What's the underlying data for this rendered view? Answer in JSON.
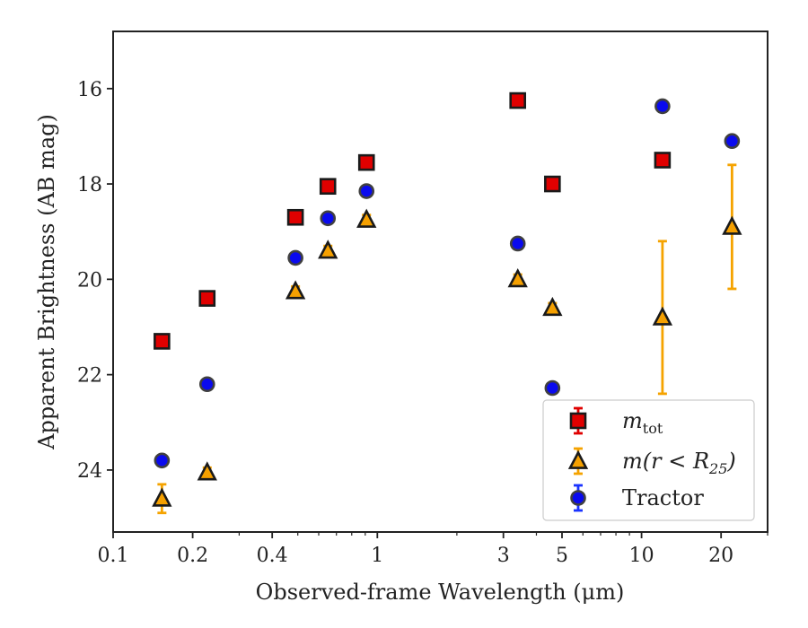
{
  "chart_data": {
    "type": "scatter",
    "xlabel": "Observed-frame Wavelength (μm)",
    "ylabel": "Apparent Brightness (AB mag)",
    "xscale": "log",
    "xlim": [
      0.1,
      30
    ],
    "ylim": [
      25.3,
      14.8
    ],
    "y_inverted": true,
    "grid": false,
    "legend_position": "lower-right",
    "x_ticks": [
      {
        "value": 0.1,
        "label": "0.1"
      },
      {
        "value": 0.2,
        "label": "0.2"
      },
      {
        "value": 0.4,
        "label": "0.4"
      },
      {
        "value": 1,
        "label": "1"
      },
      {
        "value": 3,
        "label": "3"
      },
      {
        "value": 5,
        "label": "5"
      },
      {
        "value": 10,
        "label": "10"
      },
      {
        "value": 20,
        "label": "20"
      }
    ],
    "y_ticks": [
      {
        "value": 16,
        "label": "16"
      },
      {
        "value": 18,
        "label": "18"
      },
      {
        "value": 20,
        "label": "20"
      },
      {
        "value": 22,
        "label": "22"
      },
      {
        "value": 24,
        "label": "24"
      }
    ],
    "series": [
      {
        "name": "m_tot",
        "legend_main": "m",
        "legend_sub": "tot",
        "marker": "square",
        "fill": "#e00000",
        "edge": "#1a1a1a",
        "errcolor": "#e00000",
        "points": [
          {
            "x": 0.153,
            "y": 21.3,
            "err": 0.1
          },
          {
            "x": 0.227,
            "y": 20.4,
            "err": 0.1
          },
          {
            "x": 0.49,
            "y": 18.7,
            "err": 0.1
          },
          {
            "x": 0.65,
            "y": 18.05,
            "err": 0.1
          },
          {
            "x": 0.91,
            "y": 17.55,
            "err": 0.1
          },
          {
            "x": 3.4,
            "y": 16.25,
            "err": 0.1
          },
          {
            "x": 4.6,
            "y": 18.0,
            "err": 0.1
          },
          {
            "x": 12.0,
            "y": 17.5,
            "err": 0.1
          }
        ]
      },
      {
        "name": "m(r < R_25)",
        "legend_main": "m(r < R",
        "legend_sub": "25",
        "legend_close": ")",
        "marker": "triangle",
        "fill": "#f5a000",
        "edge": "#1a1a1a",
        "errcolor": "#f5a300",
        "points": [
          {
            "x": 0.153,
            "y": 24.6,
            "err": 0.3
          },
          {
            "x": 0.227,
            "y": 24.05,
            "err": 0.1
          },
          {
            "x": 0.49,
            "y": 20.25,
            "err": 0.1
          },
          {
            "x": 0.65,
            "y": 19.4,
            "err": 0.1
          },
          {
            "x": 0.91,
            "y": 18.75,
            "err": 0.1
          },
          {
            "x": 3.4,
            "y": 20.0,
            "err": 0.1
          },
          {
            "x": 4.6,
            "y": 20.6,
            "err": 0.1
          },
          {
            "x": 12.0,
            "y": 20.8,
            "err": 1.6
          },
          {
            "x": 22.0,
            "y": 18.9,
            "err": 1.3
          }
        ]
      },
      {
        "name": "Tractor",
        "legend_main": "Tractor",
        "marker": "circle",
        "fill": "#0a0aee",
        "edge": "#404040",
        "errcolor": "#1a33ff",
        "points": [
          {
            "x": 0.153,
            "y": 23.8,
            "err": 0.1
          },
          {
            "x": 0.227,
            "y": 22.2,
            "err": 0.1
          },
          {
            "x": 0.49,
            "y": 19.55,
            "err": 0.1
          },
          {
            "x": 0.65,
            "y": 18.72,
            "err": 0.1
          },
          {
            "x": 0.91,
            "y": 18.15,
            "err": 0.1
          },
          {
            "x": 3.4,
            "y": 19.25,
            "err": 0.1
          },
          {
            "x": 4.6,
            "y": 22.28,
            "err": 0.1
          },
          {
            "x": 12.0,
            "y": 16.37,
            "err": 0.1
          },
          {
            "x": 22.0,
            "y": 17.1,
            "err": 0.1
          }
        ]
      }
    ]
  }
}
